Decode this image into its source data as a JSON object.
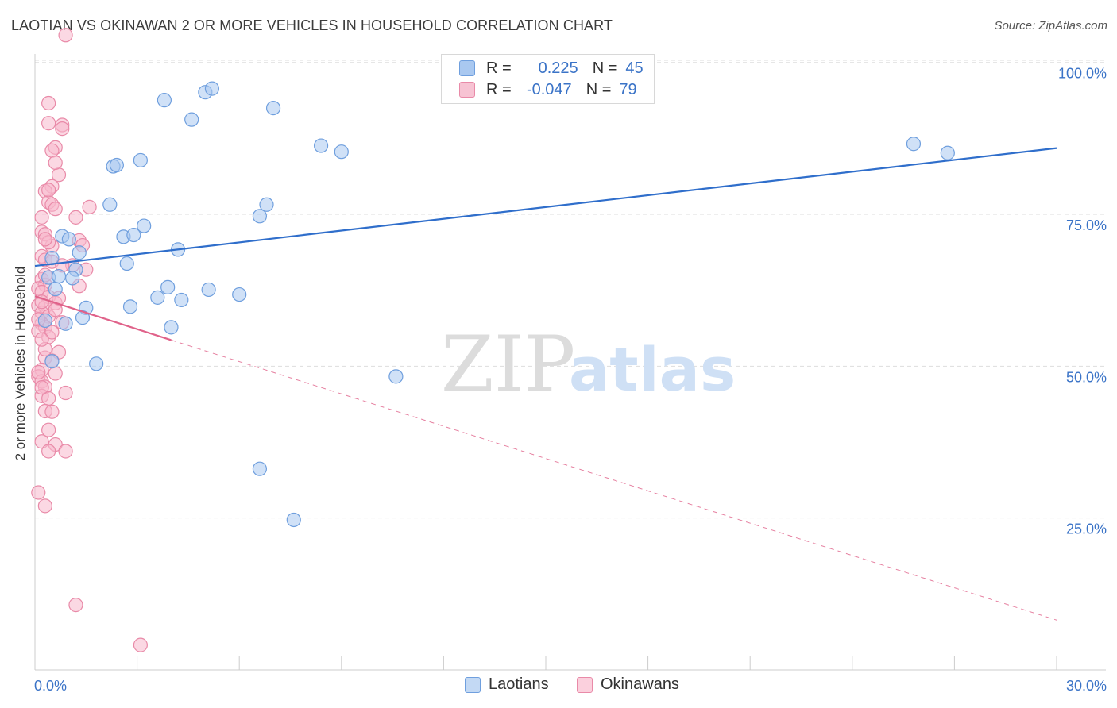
{
  "title": "LAOTIAN VS OKINAWAN 2 OR MORE VEHICLES IN HOUSEHOLD CORRELATION CHART",
  "source": "Source: ZipAtlas.com",
  "watermark": {
    "zip": "ZIP",
    "atlas": "atlas"
  },
  "colors": {
    "laotian_fill": "#a9c8f0",
    "laotian_stroke": "#6f9fde",
    "laotian_line": "#2f6ecb",
    "okinawan_fill": "#f7b8cc",
    "okinawan_stroke": "#e98aa8",
    "okinawan_line": "#e0628a",
    "tick_label": "#3a73c7",
    "grid": "#dddddd"
  },
  "legend": {
    "laotian": {
      "r_label": "R =",
      "r_value": "0.225",
      "n_label": "N =",
      "n_value": "45"
    },
    "okinawan": {
      "r_label": "R =",
      "r_value": "-0.047",
      "n_label": "N =",
      "n_value": "79"
    }
  },
  "bottom_legend": {
    "laotian": "Laotians",
    "okinawan": "Okinawans"
  },
  "chart_data": {
    "type": "scatter",
    "title": "LAOTIAN VS OKINAWAN 2 OR MORE VEHICLES IN HOUSEHOLD CORRELATION CHART",
    "xlabel": "",
    "ylabel": "2 or more Vehicles in Household",
    "xlim": [
      0,
      30
    ],
    "ylim": [
      0,
      102
    ],
    "x_tick_labels": {
      "min": "0.0%",
      "max": "30.0%"
    },
    "y_ticks": [
      {
        "value": 25,
        "label": "25.0%"
      },
      {
        "value": 50,
        "label": "50.0%"
      },
      {
        "value": 75,
        "label": "75.0%"
      },
      {
        "value": 100,
        "label": "100.0%"
      }
    ],
    "series": [
      {
        "name": "Laotians",
        "r": 0.225,
        "n": 45,
        "trend": {
          "x0": 0,
          "y0": 66.5,
          "x1": 30,
          "y1": 85.9,
          "style": "solid"
        },
        "points": [
          [
            0.4,
            64.6
          ],
          [
            0.5,
            67.8
          ],
          [
            0.6,
            62.7
          ],
          [
            0.7,
            64.8
          ],
          [
            0.8,
            71.4
          ],
          [
            1.0,
            70.9
          ],
          [
            1.2,
            65.9
          ],
          [
            1.3,
            68.7
          ],
          [
            1.5,
            59.6
          ],
          [
            1.4,
            58.0
          ],
          [
            2.2,
            76.6
          ],
          [
            2.3,
            82.9
          ],
          [
            2.4,
            83.1
          ],
          [
            2.6,
            71.3
          ],
          [
            2.7,
            66.9
          ],
          [
            2.8,
            59.8
          ],
          [
            2.9,
            71.6
          ],
          [
            3.1,
            83.9
          ],
          [
            3.2,
            73.1
          ],
          [
            3.6,
            61.3
          ],
          [
            3.8,
            93.8
          ],
          [
            3.9,
            63.0
          ],
          [
            4.0,
            56.4
          ],
          [
            4.2,
            69.2
          ],
          [
            4.3,
            60.9
          ],
          [
            4.6,
            90.6
          ],
          [
            5.0,
            95.1
          ],
          [
            5.2,
            95.7
          ],
          [
            5.1,
            62.6
          ],
          [
            6.0,
            61.8
          ],
          [
            6.6,
            74.7
          ],
          [
            6.8,
            76.6
          ],
          [
            7.0,
            92.5
          ],
          [
            6.6,
            33.1
          ],
          [
            7.6,
            24.7
          ],
          [
            8.4,
            86.3
          ],
          [
            9.0,
            85.3
          ],
          [
            10.6,
            48.3
          ],
          [
            25.8,
            86.6
          ],
          [
            26.8,
            85.1
          ],
          [
            0.3,
            57.5
          ],
          [
            0.5,
            50.8
          ],
          [
            1.1,
            64.5
          ],
          [
            0.9,
            57.0
          ],
          [
            1.8,
            50.4
          ]
        ]
      },
      {
        "name": "Okinawans",
        "r": -0.047,
        "n": 79,
        "trend": {
          "x0": 0,
          "y0": 61.5,
          "x1": 4.0,
          "y1": 54.3,
          "x2": 30,
          "y2": 8.2,
          "style": "solid-then-dashed"
        },
        "points": [
          [
            0.9,
            104.5
          ],
          [
            0.4,
            93.3
          ],
          [
            0.4,
            90.0
          ],
          [
            0.8,
            89.7
          ],
          [
            0.8,
            89.1
          ],
          [
            0.6,
            86.0
          ],
          [
            0.5,
            85.5
          ],
          [
            0.7,
            81.5
          ],
          [
            0.5,
            79.6
          ],
          [
            0.3,
            78.8
          ],
          [
            0.4,
            77.0
          ],
          [
            0.5,
            76.6
          ],
          [
            0.6,
            75.9
          ],
          [
            1.6,
            76.2
          ],
          [
            1.2,
            74.5
          ],
          [
            0.2,
            72.1
          ],
          [
            0.3,
            71.7
          ],
          [
            0.5,
            69.8
          ],
          [
            0.4,
            70.4
          ],
          [
            1.3,
            70.7
          ],
          [
            0.2,
            68.1
          ],
          [
            0.3,
            67.5
          ],
          [
            0.5,
            67.2
          ],
          [
            1.1,
            66.6
          ],
          [
            1.5,
            65.9
          ],
          [
            0.2,
            64.3
          ],
          [
            0.3,
            63.4
          ],
          [
            0.1,
            62.8
          ],
          [
            0.2,
            62.2
          ],
          [
            0.4,
            61.4
          ],
          [
            0.6,
            60.4
          ],
          [
            0.1,
            60.0
          ],
          [
            0.3,
            59.8
          ],
          [
            0.2,
            58.8
          ],
          [
            0.4,
            58.2
          ],
          [
            0.2,
            57.0
          ],
          [
            0.3,
            56.4
          ],
          [
            0.8,
            57.2
          ],
          [
            0.1,
            55.8
          ],
          [
            0.4,
            54.8
          ],
          [
            0.7,
            52.3
          ],
          [
            0.3,
            51.4
          ],
          [
            0.2,
            49.4
          ],
          [
            0.1,
            48.3
          ],
          [
            0.2,
            47.5
          ],
          [
            0.3,
            46.6
          ],
          [
            0.9,
            45.6
          ],
          [
            0.2,
            45.1
          ],
          [
            0.4,
            44.7
          ],
          [
            0.3,
            42.6
          ],
          [
            0.5,
            42.5
          ],
          [
            0.2,
            37.6
          ],
          [
            0.6,
            37.1
          ],
          [
            0.4,
            36.0
          ],
          [
            0.9,
            36.0
          ],
          [
            0.1,
            29.2
          ],
          [
            0.3,
            27.0
          ],
          [
            1.2,
            10.7
          ],
          [
            3.1,
            4.1
          ],
          [
            0.1,
            49.0
          ],
          [
            0.2,
            60.6
          ],
          [
            0.3,
            52.8
          ],
          [
            0.5,
            55.6
          ],
          [
            0.6,
            59.3
          ],
          [
            0.8,
            66.6
          ],
          [
            1.4,
            69.9
          ],
          [
            0.2,
            74.5
          ],
          [
            0.4,
            79.0
          ],
          [
            0.6,
            83.5
          ],
          [
            0.3,
            65.0
          ],
          [
            0.2,
            54.4
          ],
          [
            0.5,
            50.9
          ],
          [
            0.7,
            61.2
          ],
          [
            1.3,
            63.2
          ],
          [
            0.1,
            57.7
          ],
          [
            0.2,
            46.5
          ],
          [
            0.4,
            39.5
          ],
          [
            0.6,
            48.8
          ],
          [
            0.3,
            70.9
          ]
        ]
      }
    ]
  }
}
